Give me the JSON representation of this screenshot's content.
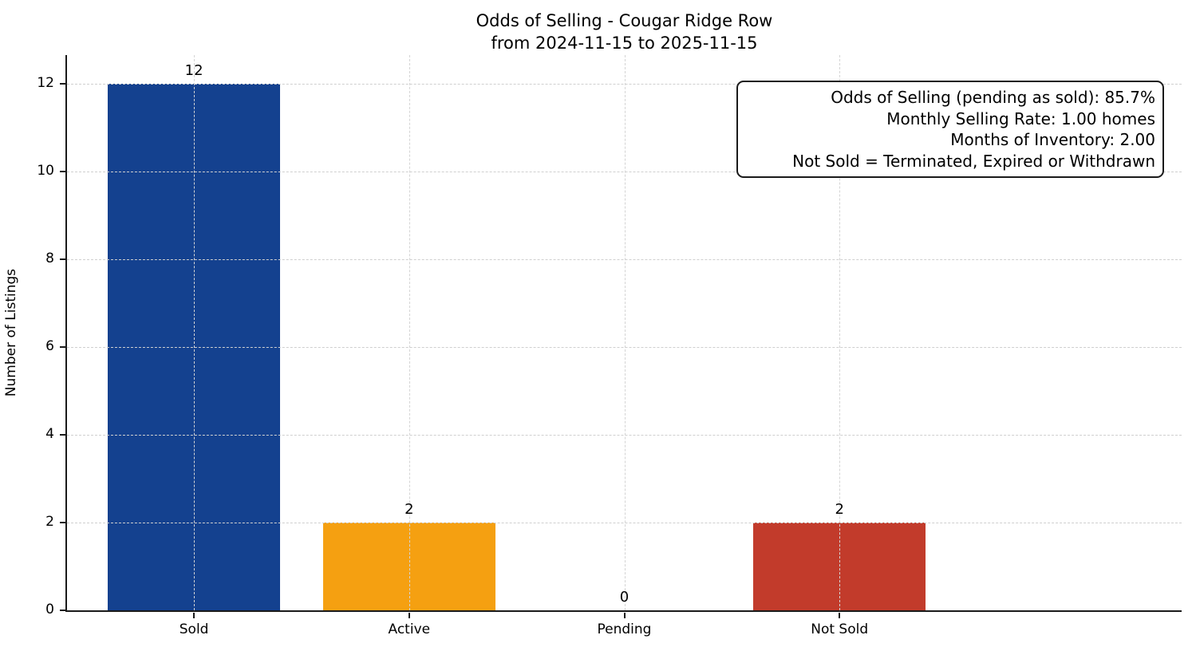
{
  "title": {
    "line1": "Odds of Selling - Cougar Ridge Row",
    "line2": "from 2024-11-15 to 2025-11-15"
  },
  "annotation": {
    "lines": [
      "Odds of Selling (pending as sold): 85.7%",
      "Monthly Selling Rate: 1.00 homes",
      "Months of Inventory: 2.00",
      "Not Sold = Terminated, Expired or Withdrawn"
    ]
  },
  "chart_data": {
    "type": "bar",
    "title": "Odds of Selling - Cougar Ridge Row\nfrom 2024-11-15 to 2025-11-15",
    "categories": [
      "Sold",
      "Active",
      "Pending",
      "Not Sold"
    ],
    "values": [
      12,
      2,
      0,
      2
    ],
    "bar_value_labels": [
      "12",
      "2",
      "0",
      "2"
    ],
    "bar_colors": [
      "#14418f",
      "#f5a011",
      null,
      "#c23b2b"
    ],
    "xlabel": "",
    "ylabel": "Number of Listings",
    "ylim": [
      0,
      12.65
    ],
    "yticks": [
      0,
      2,
      4,
      6,
      8,
      10,
      12
    ],
    "grid": "both-axes, dashed, drawn above bars",
    "legend_position": "none",
    "style_colors": {
      "grid": "#cfcfcf",
      "spine": "#1a1a1a",
      "text": "#000000",
      "background": "#ffffff"
    }
  }
}
